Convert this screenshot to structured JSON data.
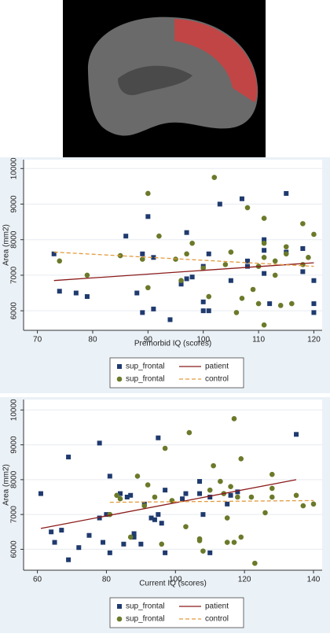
{
  "chart_data": [
    {
      "type": "scatter",
      "x_label": "Premorbid IQ (scores)",
      "y_label": "Area (mm2)",
      "xlim": [
        67.5,
        121.5
      ],
      "ylim": [
        5450,
        10250
      ],
      "xticks": [
        70,
        80,
        90,
        100,
        110,
        120
      ],
      "yticks": [
        6000,
        7000,
        8000,
        9000,
        10000
      ],
      "grid": true,
      "series": [
        {
          "name": "sup_frontal",
          "marker": "square",
          "color": "#1f3a6e",
          "x": [
            73,
            74,
            77,
            79,
            86,
            88,
            89,
            89,
            90,
            91,
            91,
            94,
            96,
            97,
            97,
            98,
            100,
            100,
            100,
            101,
            101,
            103,
            105,
            107,
            108,
            108,
            111,
            111,
            111,
            112,
            115,
            115,
            118,
            118,
            120,
            120,
            120
          ],
          "values": [
            7600,
            6550,
            6500,
            6400,
            8100,
            6500,
            7600,
            5950,
            8650,
            6050,
            7500,
            5750,
            6750,
            8200,
            6900,
            6950,
            7250,
            6250,
            6000,
            7600,
            6000,
            9000,
            6850,
            9150,
            7400,
            7250,
            8000,
            7700,
            7050,
            6200,
            9300,
            7650,
            7750,
            7100,
            6850,
            6200,
            5950
          ]
        },
        {
          "name": "sup_frontal",
          "marker": "circle",
          "color": "#6b7a2a",
          "x": [
            74,
            79,
            85,
            89,
            90,
            90,
            92,
            95,
            96,
            97,
            98,
            100,
            101,
            102,
            104,
            105,
            106,
            107,
            108,
            109,
            110,
            110,
            111,
            111,
            111,
            111,
            113,
            113,
            114,
            115,
            115,
            116,
            118,
            118,
            119,
            120
          ],
          "values": [
            7400,
            7000,
            7550,
            7450,
            9300,
            6650,
            8100,
            7450,
            6850,
            7600,
            7900,
            7200,
            6400,
            9750,
            7300,
            7650,
            5950,
            6350,
            8900,
            6600,
            7250,
            6200,
            8600,
            7900,
            5600,
            7500,
            7400,
            7000,
            6150,
            7600,
            7800,
            6200,
            8450,
            7300,
            7500,
            8150
          ]
        }
      ],
      "fit_lines": [
        {
          "name": "patient",
          "color": "#8b1a1a",
          "dashed": false,
          "x": [
            73,
            120
          ],
          "values": [
            6850,
            7350
          ]
        },
        {
          "name": "control",
          "color": "#e39a3c",
          "dashed": true,
          "x": [
            73,
            120
          ],
          "values": [
            7650,
            7250
          ]
        }
      ]
    },
    {
      "type": "scatter",
      "x_label": "Current IQ (scores)",
      "y_label": "Area (mm2)",
      "xlim": [
        56,
        142.5
      ],
      "ylim": [
        5400,
        10300
      ],
      "xticks": [
        60,
        80,
        100,
        120,
        140
      ],
      "yticks": [
        6000,
        7000,
        8000,
        9000,
        10000
      ],
      "grid": true,
      "series": [
        {
          "name": "sup_frontal",
          "marker": "square",
          "color": "#1f3a6e",
          "x": [
            61,
            64,
            65,
            67,
            69,
            69,
            72,
            75,
            78,
            78,
            79,
            80,
            81,
            81,
            84,
            85,
            86,
            87,
            88,
            88,
            90,
            91,
            93,
            94,
            95,
            95,
            96,
            97,
            97,
            102,
            103,
            107,
            107,
            108,
            110,
            110,
            115,
            116,
            118,
            135
          ],
          "values": [
            7600,
            6500,
            6200,
            6550,
            8650,
            5700,
            6050,
            6400,
            6900,
            9050,
            6200,
            7000,
            8100,
            5900,
            7600,
            6150,
            7500,
            7550,
            6450,
            6350,
            6150,
            7300,
            6900,
            6850,
            7000,
            9200,
            6750,
            7700,
            5900,
            7450,
            7600,
            7950,
            7600,
            7000,
            5900,
            7500,
            7300,
            7550,
            7650,
            9300
          ]
        },
        {
          "name": "sup_frontal",
          "marker": "circle",
          "color": "#6b7a2a",
          "x": [
            81,
            83,
            84,
            87,
            89,
            91,
            92,
            94,
            96,
            97,
            99,
            103,
            104,
            107,
            107,
            108,
            110,
            111,
            113,
            114,
            115,
            115,
            116,
            117,
            117,
            118,
            119,
            119,
            122,
            123,
            126,
            128,
            128,
            128,
            135,
            137,
            140
          ],
          "values": [
            7000,
            7550,
            7450,
            6350,
            8100,
            7250,
            7850,
            7500,
            6150,
            8900,
            7400,
            6650,
            9350,
            6250,
            6300,
            5950,
            7700,
            8400,
            7950,
            7600,
            6200,
            6900,
            7800,
            6200,
            9750,
            7500,
            8600,
            6350,
            7500,
            5600,
            7050,
            7750,
            8150,
            7500,
            7550,
            7250,
            7300
          ]
        }
      ],
      "fit_lines": [
        {
          "name": "patient",
          "color": "#8b1a1a",
          "dashed": false,
          "x": [
            61,
            135
          ],
          "values": [
            6600,
            8000
          ]
        },
        {
          "name": "control",
          "color": "#e39a3c",
          "dashed": true,
          "x": [
            81,
            140
          ],
          "values": [
            7350,
            7400
          ]
        }
      ]
    }
  ]
}
